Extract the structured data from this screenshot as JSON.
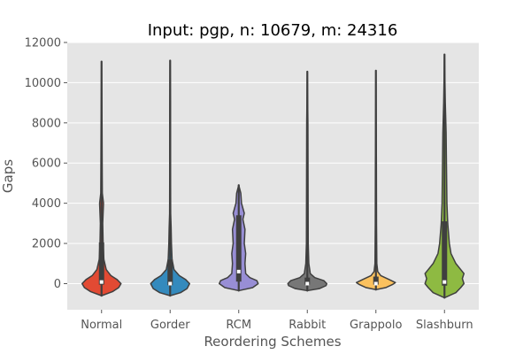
{
  "chart_data": {
    "type": "violin",
    "title": "Input: pgp, n: 10679, m: 24316",
    "xlabel": "Reordering Schemes",
    "ylabel": "Gaps",
    "ylim": [
      -1300,
      12000
    ],
    "yticks": [
      0,
      2000,
      4000,
      6000,
      8000,
      10000,
      12000
    ],
    "grid": true,
    "background": "#e5e5e5",
    "categories": [
      "Normal",
      "Gorder",
      "RCM",
      "Rabbit",
      "Grappolo",
      "Slashburn"
    ],
    "colors": [
      "#e24a33",
      "#348abd",
      "#988ed5",
      "#777777",
      "#fbc15e",
      "#8eba42"
    ],
    "series": [
      {
        "category": "Normal",
        "min": -600,
        "q1": -50,
        "median": 80,
        "q3": 500,
        "whisker_high": 2050,
        "max": 11050,
        "density": [
          [
            -600,
            0
          ],
          [
            -400,
            14
          ],
          [
            -200,
            22
          ],
          [
            0,
            25
          ],
          [
            200,
            20
          ],
          [
            400,
            12
          ],
          [
            700,
            6
          ],
          [
            1200,
            3
          ],
          [
            2000,
            2
          ],
          [
            3000,
            1.5
          ],
          [
            4000,
            2.5
          ],
          [
            4500,
            1
          ],
          [
            6000,
            0.8
          ],
          [
            8000,
            0.6
          ],
          [
            11050,
            0
          ]
        ]
      },
      {
        "category": "Gorder",
        "min": -600,
        "q1": -80,
        "median": 0,
        "q3": 300,
        "whisker_high": 1200,
        "max": 11100,
        "density": [
          [
            -600,
            0
          ],
          [
            -450,
            16
          ],
          [
            -250,
            26
          ],
          [
            0,
            30
          ],
          [
            200,
            24
          ],
          [
            400,
            14
          ],
          [
            700,
            6
          ],
          [
            1200,
            3
          ],
          [
            2000,
            2
          ],
          [
            2800,
            1.5
          ],
          [
            3500,
            0.8
          ],
          [
            6000,
            0.6
          ],
          [
            9000,
            0.5
          ],
          [
            11100,
            0
          ]
        ]
      },
      {
        "category": "RCM",
        "min": -350,
        "q1": 100,
        "median": 600,
        "q3": 1500,
        "whisker_high": 3400,
        "max": 4900,
        "density": [
          [
            -350,
            0
          ],
          [
            -200,
            10
          ],
          [
            0,
            14
          ],
          [
            150,
            13
          ],
          [
            300,
            8
          ],
          [
            500,
            5
          ],
          [
            1000,
            4.5
          ],
          [
            1500,
            5
          ],
          [
            2000,
            4
          ],
          [
            2700,
            4.5
          ],
          [
            3200,
            3
          ],
          [
            3500,
            4
          ],
          [
            4000,
            2
          ],
          [
            4500,
            1.5
          ],
          [
            4900,
            0
          ]
        ]
      },
      {
        "category": "Rabbit",
        "min": -350,
        "q1": -50,
        "median": 0,
        "q3": 100,
        "whisker_high": 300,
        "max": 10550,
        "density": [
          [
            -350,
            0
          ],
          [
            -250,
            16
          ],
          [
            -100,
            25
          ],
          [
            0,
            26
          ],
          [
            150,
            22
          ],
          [
            300,
            10
          ],
          [
            500,
            4
          ],
          [
            1000,
            2
          ],
          [
            2000,
            1.2
          ],
          [
            5000,
            1
          ],
          [
            8000,
            0.8
          ],
          [
            10550,
            0
          ]
        ]
      },
      {
        "category": "Grappolo",
        "min": -300,
        "q1": -50,
        "median": 0,
        "q3": 150,
        "whisker_high": 350,
        "max": 10600,
        "density": [
          [
            -300,
            0
          ],
          [
            -200,
            16
          ],
          [
            -50,
            27
          ],
          [
            50,
            32
          ],
          [
            200,
            22
          ],
          [
            400,
            8
          ],
          [
            600,
            3
          ],
          [
            1000,
            1.5
          ],
          [
            3000,
            1
          ],
          [
            6000,
            0.8
          ],
          [
            10600,
            0
          ]
        ]
      },
      {
        "category": "Slashburn",
        "min": -700,
        "q1": -100,
        "median": 80,
        "q3": 700,
        "whisker_high": 3100,
        "max": 11400,
        "density": [
          [
            -700,
            0
          ],
          [
            -450,
            7
          ],
          [
            -200,
            10
          ],
          [
            0,
            12
          ],
          [
            250,
            11
          ],
          [
            500,
            12
          ],
          [
            700,
            10
          ],
          [
            1000,
            7
          ],
          [
            1500,
            4
          ],
          [
            2000,
            3
          ],
          [
            3000,
            2
          ],
          [
            4000,
            1.5
          ],
          [
            6000,
            1.2
          ],
          [
            7500,
            1
          ],
          [
            9000,
            0.5
          ],
          [
            11400,
            0
          ]
        ]
      }
    ]
  }
}
